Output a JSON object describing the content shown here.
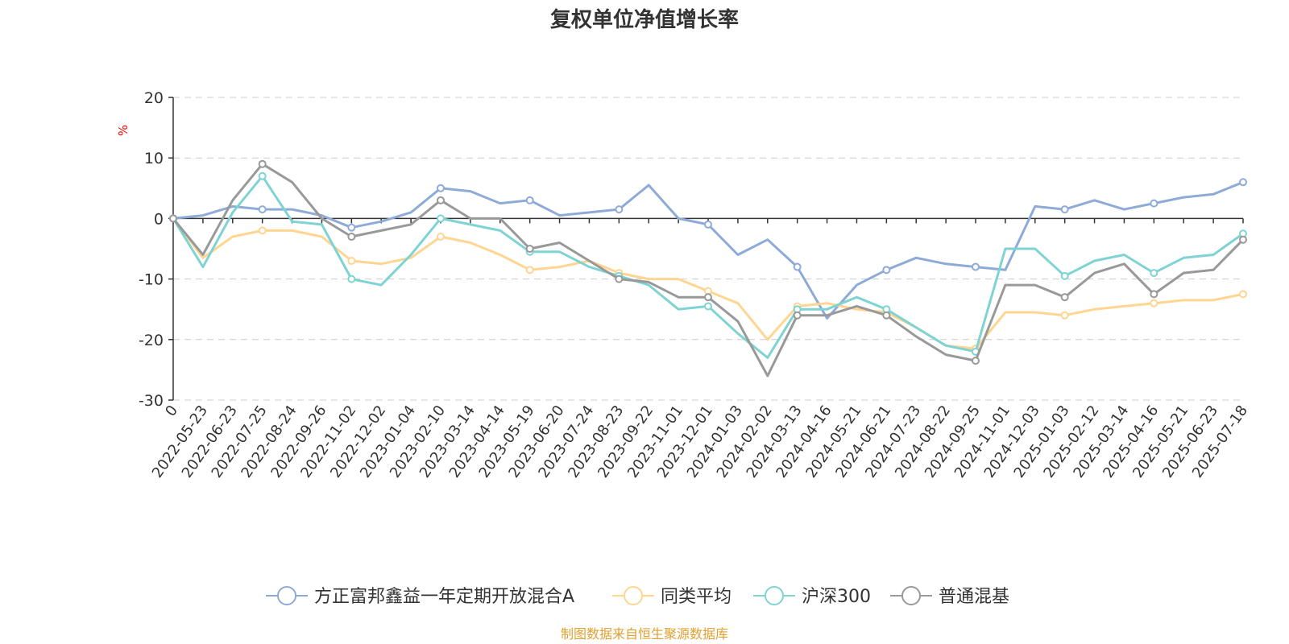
{
  "chart_data": {
    "type": "line",
    "title": "复权单位净值增长率",
    "ylabel": "%",
    "ylim": [
      -30,
      20
    ],
    "yticks": [
      20,
      10,
      0,
      -10,
      -20,
      -30
    ],
    "x_ticks": [
      "0",
      "2022-05-23",
      "2022-06-23",
      "2022-07-25",
      "2022-08-24",
      "2022-09-26",
      "2022-11-02",
      "2022-12-02",
      "2023-01-04",
      "2023-02-10",
      "2023-03-14",
      "2023-04-14",
      "2023-05-19",
      "2023-06-20",
      "2023-07-24",
      "2023-08-23",
      "2023-09-22",
      "2023-11-01",
      "2023-12-01",
      "2024-01-03",
      "2024-02-02",
      "2024-03-13",
      "2024-04-16",
      "2024-05-21",
      "2024-06-21",
      "2024-07-23",
      "2024-08-22",
      "2024-09-25",
      "2024-11-01",
      "2024-12-03",
      "2025-01-03",
      "2025-02-12",
      "2025-03-14",
      "2025-04-16",
      "2025-05-21",
      "2025-06-23",
      "2025-07-18"
    ],
    "grid": true,
    "legend_position": "bottom",
    "source": "制图数据来自恒生聚源数据库",
    "series": [
      {
        "name": "方正富邦鑫益一年定期开放混合A",
        "color": "#8eabd8",
        "values": [
          0,
          0.5,
          2,
          1.5,
          1.5,
          0.5,
          -1.5,
          -0.5,
          1,
          5,
          4.5,
          2.5,
          3,
          0.5,
          1,
          1.5,
          5.5,
          0,
          -1,
          -6,
          -3.5,
          -8,
          -16.5,
          -11,
          -8.5,
          -6.5,
          -7.5,
          -8,
          -8.5,
          2,
          1.5,
          3,
          1.5,
          2.5,
          3.5,
          4,
          6
        ]
      },
      {
        "name": "同类平均",
        "color": "#ffd591",
        "values": [
          0,
          -6.5,
          -3,
          -2,
          -2,
          -3,
          -7,
          -7.5,
          -6.5,
          -3,
          -4,
          -6,
          -8.5,
          -8,
          -7,
          -9,
          -10,
          -10,
          -12,
          -14,
          -20,
          -14.5,
          -14,
          -15,
          -15.5,
          -18,
          -21,
          -21.5,
          -15.5,
          -15.5,
          -16,
          -15,
          -14.5,
          -14,
          -13.5,
          -13.5,
          -12.5
        ]
      },
      {
        "name": "沪深300",
        "color": "#7fd3d3",
        "values": [
          0,
          -8,
          1,
          7,
          -0.5,
          -1,
          -10,
          -11,
          -6,
          0,
          -1,
          -2,
          -5.5,
          -5.5,
          -8,
          -9.5,
          -11,
          -15,
          -14.5,
          -19,
          -23,
          -15,
          -15,
          -13,
          -15,
          -18,
          -21,
          -22,
          -5,
          -5,
          -9.5,
          -7,
          -6,
          -9,
          -6.5,
          -6,
          -2.5
        ]
      },
      {
        "name": "普通混基",
        "color": "#999999",
        "values": [
          0,
          -6,
          3,
          9,
          6,
          0,
          -3,
          -2,
          -1,
          3,
          0,
          0,
          -5,
          -4,
          -7,
          -10,
          -10.5,
          -13,
          -13,
          -17,
          -26,
          -16,
          -16,
          -14.5,
          -16,
          -19.5,
          -22.5,
          -23.5,
          -11,
          -11,
          -13,
          -9,
          -7.5,
          -12.5,
          -9,
          -8.5,
          -3.5
        ]
      }
    ]
  }
}
